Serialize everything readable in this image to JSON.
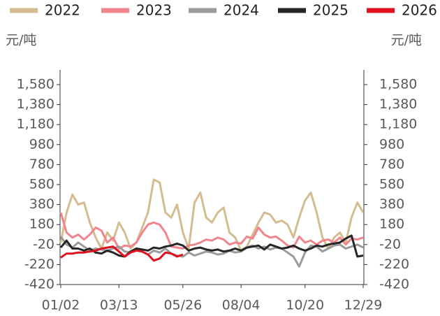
{
  "chart_data": {
    "type": "line",
    "y_unit": "元/吨",
    "y2_unit": "元/吨",
    "x": [
      "01/02",
      "01/09",
      "01/16",
      "01/23",
      "01/30",
      "02/06",
      "02/13",
      "02/20",
      "02/27",
      "03/06",
      "03/13",
      "03/20",
      "03/27",
      "04/03",
      "04/10",
      "04/17",
      "04/24",
      "05/01",
      "05/08",
      "05/15",
      "05/22",
      "05/26",
      "06/02",
      "06/09",
      "06/16",
      "06/23",
      "06/30",
      "07/07",
      "07/14",
      "07/21",
      "07/28",
      "08/04",
      "08/11",
      "08/18",
      "08/25",
      "09/01",
      "09/08",
      "09/15",
      "09/22",
      "09/29",
      "10/06",
      "10/13",
      "10/20",
      "10/27",
      "11/03",
      "11/10",
      "11/17",
      "11/24",
      "12/01",
      "12/08",
      "12/15",
      "12/22",
      "12/29"
    ],
    "xticks": [
      "01/02",
      "03/13",
      "05/26",
      "08/04",
      "10/20",
      "12/29"
    ],
    "ylim": [
      -420,
      1580
    ],
    "yticks": [
      -420,
      -220,
      -20,
      180,
      380,
      580,
      780,
      980,
      {
        "value": 1180,
        "label": "1,180"
      },
      {
        "value": 1380,
        "label": "1,380"
      },
      {
        "value": 1580,
        "label": "1,580"
      }
    ],
    "y2lim": [
      -420,
      1580
    ],
    "y2ticks": [
      -420,
      -220,
      -20,
      180,
      380,
      580,
      780,
      980,
      {
        "value": 1180,
        "label": "1,180"
      },
      {
        "value": 1380,
        "label": "1,380"
      },
      {
        "value": 1580,
        "label": "1,580"
      }
    ],
    "series": [
      {
        "name": "2022",
        "color": "#d4bc8f",
        "values": [
          0,
          300,
          480,
          380,
          400,
          200,
          50,
          -60,
          100,
          20,
          200,
          100,
          -60,
          0,
          150,
          300,
          630,
          600,
          300,
          250,
          380,
          100,
          -60,
          400,
          500,
          250,
          200,
          300,
          350,
          100,
          50,
          -80,
          -40,
          80,
          200,
          300,
          280,
          200,
          220,
          180,
          50,
          250,
          420,
          500,
          300,
          50,
          -60,
          50,
          100,
          0,
          250,
          400,
          300
        ]
      },
      {
        "name": "2023",
        "color": "#f0858e",
        "values": [
          300,
          100,
          50,
          80,
          30,
          80,
          150,
          120,
          0,
          50,
          -60,
          -30,
          -40,
          0,
          100,
          180,
          200,
          180,
          100,
          -40,
          -50,
          -60,
          -30,
          -20,
          0,
          30,
          20,
          50,
          30,
          -20,
          0,
          -10,
          60,
          40,
          150,
          80,
          50,
          60,
          20,
          -30,
          -50,
          60,
          0,
          20,
          -20,
          20,
          30,
          0,
          50,
          -20,
          40,
          30,
          50
        ]
      },
      {
        "name": "2024",
        "color": "#9b9b9b",
        "values": [
          60,
          -20,
          -50,
          0,
          -40,
          -80,
          -60,
          -70,
          -80,
          -60,
          -40,
          -90,
          -100,
          -60,
          -90,
          -120,
          -80,
          -100,
          -60,
          -110,
          -130,
          -140,
          -100,
          -130,
          -110,
          -90,
          -100,
          -120,
          -110,
          -80,
          -100,
          -90,
          -50,
          -30,
          -60,
          -40,
          -70,
          -50,
          -60,
          -100,
          -140,
          -240,
          -100,
          -30,
          -40,
          -90,
          -60,
          -30,
          -20,
          -60,
          -40,
          -20,
          -50
        ]
      },
      {
        "name": "2025",
        "color": "#262626",
        "values": [
          -50,
          20,
          -60,
          -60,
          -80,
          -60,
          -100,
          -110,
          -80,
          -100,
          -130,
          -140,
          -90,
          -60,
          -70,
          -80,
          -50,
          -60,
          -40,
          -30,
          -10,
          -30,
          -80,
          -60,
          -50,
          -70,
          -80,
          -70,
          -90,
          -80,
          -60,
          -80,
          -50,
          -40,
          -30,
          -70,
          -20,
          -40,
          -60,
          -50,
          -30,
          -60,
          -80,
          -60,
          -30,
          -40,
          -20,
          -10,
          0,
          40,
          70,
          -140,
          -130
        ]
      },
      {
        "name": "2026",
        "color": "#e0101e",
        "values": [
          -150,
          -110,
          -110,
          -100,
          -100,
          -90,
          -80,
          -60,
          -50,
          -40,
          -90,
          -140,
          -100,
          -80,
          -90,
          -120,
          -180,
          -160,
          -100,
          -110,
          -140,
          -120,
          null,
          null,
          null,
          null,
          null,
          null,
          null,
          null,
          null,
          null,
          null,
          null,
          null,
          null,
          null,
          null,
          null,
          null,
          null,
          null,
          null,
          null,
          null,
          null,
          null,
          null,
          null,
          null,
          null,
          null,
          null
        ]
      }
    ]
  }
}
